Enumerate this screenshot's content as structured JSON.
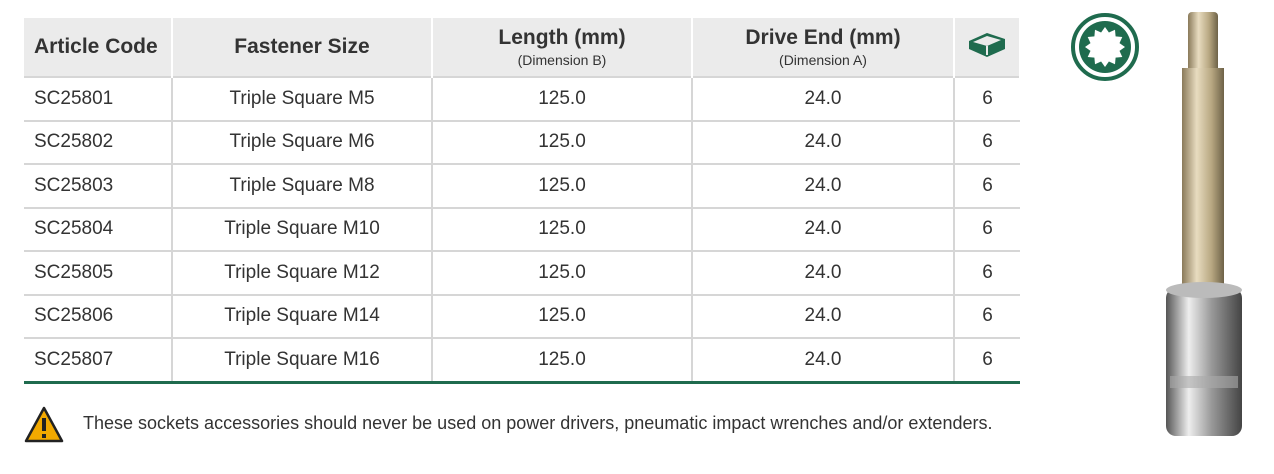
{
  "table": {
    "header": [
      "Article Code",
      "Fastener Size",
      "Length (mm)",
      "Drive End (mm)"
    ],
    "subheader": [
      "(Dimension B)",
      "(Dimension A)"
    ],
    "rows": [
      [
        "SC25801",
        "Triple Square M5",
        "125.0",
        "24.0",
        "6"
      ],
      [
        "SC25802",
        "Triple Square M6",
        "125.0",
        "24.0",
        "6"
      ],
      [
        "SC25803",
        "Triple Square M8",
        "125.0",
        "24.0",
        "6"
      ],
      [
        "SC25804",
        "Triple Square M10",
        "125.0",
        "24.0",
        "6"
      ],
      [
        "SC25805",
        "Triple Square M12",
        "125.0",
        "24.0",
        "6"
      ],
      [
        "SC25806",
        "Triple Square M14",
        "125.0",
        "24.0",
        "6"
      ],
      [
        "SC25807",
        "Triple Square M16",
        "125.0",
        "24.0",
        "6"
      ]
    ]
  },
  "warning": "These sockets accessories should never be used on power drivers, pneumatic impact wrenches and/or extenders."
}
